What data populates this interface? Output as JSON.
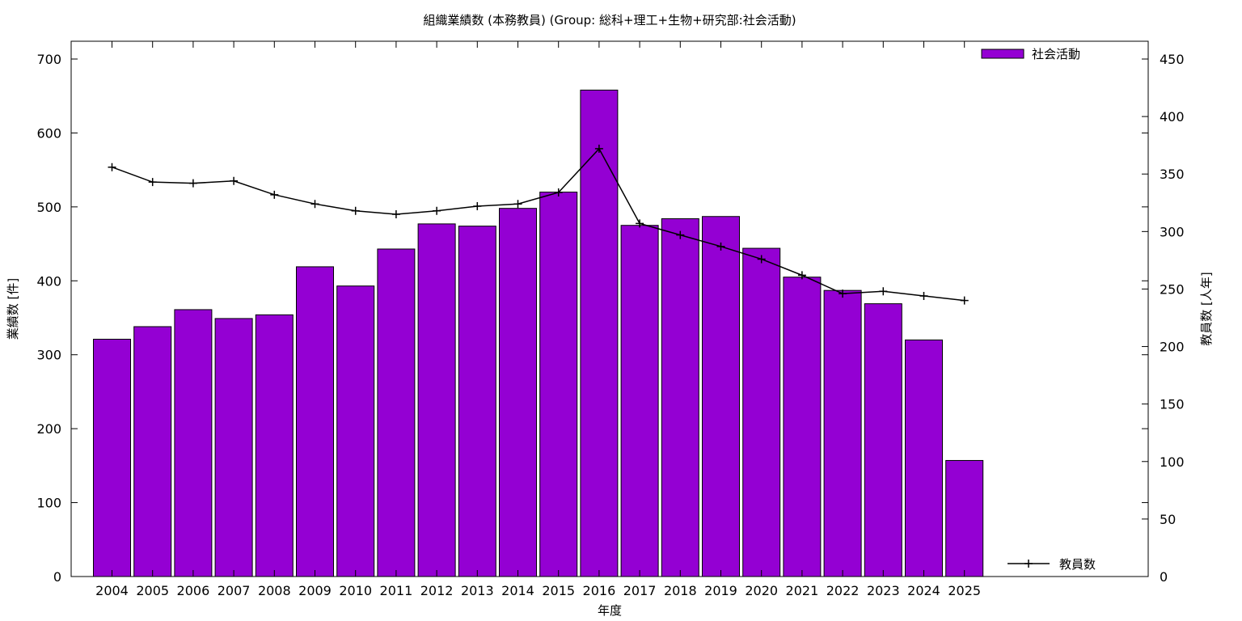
{
  "chart_data": {
    "type": "bar",
    "title": "組織業績数 (本務教員) (Group: 総科+理工+生物+研究部:社会活動)",
    "xlabel": "年度",
    "ylabel": "業績数 [件]",
    "y2label": "教員数 [人年]",
    "categories": [
      "2004",
      "2005",
      "2006",
      "2007",
      "2008",
      "2009",
      "2010",
      "2011",
      "2012",
      "2013",
      "2014",
      "2015",
      "2016",
      "2017",
      "2018",
      "2019",
      "2020",
      "2021",
      "2022",
      "2023",
      "2024",
      "2025"
    ],
    "ylim": [
      0,
      700
    ],
    "y_ticks": [
      0,
      100,
      200,
      300,
      400,
      500,
      600,
      700
    ],
    "y2lim": [
      0,
      450
    ],
    "y2_ticks": [
      0,
      50,
      100,
      150,
      200,
      250,
      300,
      350,
      400,
      450
    ],
    "bar_color": "#9400d3",
    "line_color": "#000000",
    "grid": false,
    "legend_position": "top-right / bottom-right",
    "series": [
      {
        "name": "社会活動",
        "type": "bar",
        "axis": "left",
        "values": [
          321,
          338,
          361,
          349,
          354,
          419,
          393,
          443,
          477,
          474,
          498,
          520,
          658,
          475,
          484,
          487,
          444,
          405,
          387,
          369,
          320,
          157
        ]
      },
      {
        "name": "教員数",
        "type": "line",
        "axis": "right",
        "values": [
          356,
          343,
          342,
          344,
          332,
          324,
          318,
          315,
          318,
          322,
          324,
          334,
          372,
          307,
          297,
          287,
          276,
          262,
          246,
          248,
          244,
          240
        ]
      }
    ]
  }
}
